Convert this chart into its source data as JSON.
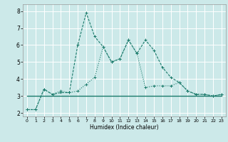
{
  "xlabel": "Humidex (Indice chaleur)",
  "xlim": [
    -0.5,
    23.5
  ],
  "ylim": [
    1.8,
    8.4
  ],
  "xticks": [
    0,
    1,
    2,
    3,
    4,
    5,
    6,
    7,
    8,
    9,
    10,
    11,
    12,
    13,
    14,
    15,
    16,
    17,
    18,
    19,
    20,
    21,
    22,
    23
  ],
  "yticks": [
    2,
    3,
    4,
    5,
    6,
    7,
    8
  ],
  "bg_color": "#cce9e9",
  "line_color": "#1a7a6a",
  "grid_color": "#ffffff",
  "line1_x": [
    0,
    1,
    2,
    3,
    4,
    5,
    6,
    7,
    8,
    9,
    10,
    11,
    12,
    13,
    14,
    15,
    16,
    17,
    18,
    19,
    20,
    21,
    22,
    23
  ],
  "line1_y": [
    2.2,
    2.2,
    3.4,
    3.1,
    3.2,
    3.2,
    6.0,
    7.9,
    6.5,
    5.9,
    5.0,
    5.2,
    6.3,
    5.5,
    6.3,
    5.7,
    4.7,
    4.1,
    3.8,
    3.3,
    3.1,
    3.1,
    3.0,
    3.1
  ],
  "line2_x": [
    0,
    1,
    2,
    3,
    4,
    5,
    6,
    7,
    8,
    9,
    10,
    11,
    12,
    13,
    14,
    15,
    16,
    17,
    18,
    19,
    20,
    21,
    22,
    23
  ],
  "line2_y": [
    2.2,
    2.2,
    3.4,
    3.1,
    3.3,
    3.2,
    3.3,
    3.7,
    4.1,
    5.9,
    5.0,
    5.2,
    6.3,
    5.5,
    3.5,
    3.6,
    3.6,
    3.6,
    3.8,
    3.3,
    3.1,
    3.1,
    3.0,
    3.1
  ],
  "line3_x": [
    0,
    1,
    2,
    3,
    4,
    5,
    6,
    7,
    8,
    9,
    10,
    11,
    12,
    13,
    14,
    15,
    16,
    17,
    18,
    19,
    20,
    21,
    22,
    23
  ],
  "line3_y": [
    3.0,
    3.0,
    3.0,
    3.0,
    3.0,
    3.0,
    3.0,
    3.0,
    3.0,
    3.0,
    3.0,
    3.0,
    3.0,
    3.0,
    3.0,
    3.0,
    3.0,
    3.0,
    3.0,
    3.0,
    3.0,
    3.0,
    3.0,
    3.0
  ]
}
